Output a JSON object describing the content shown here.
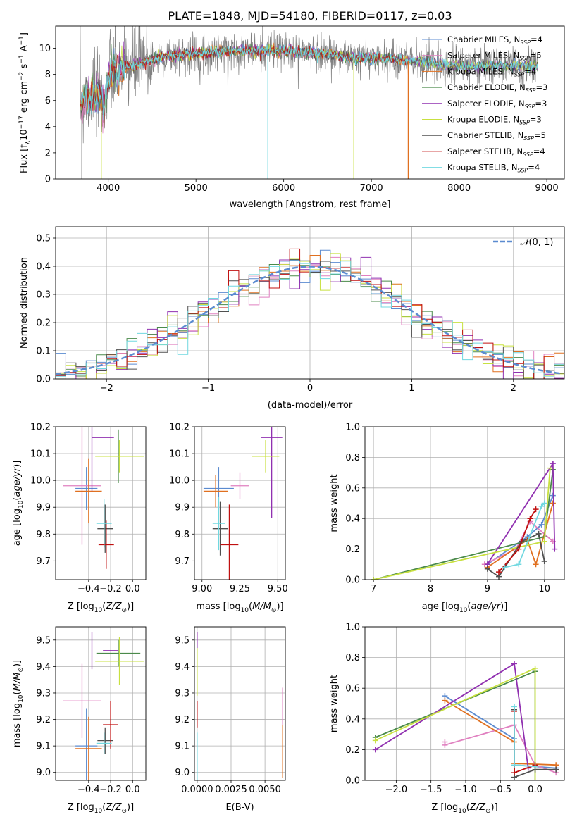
{
  "title": "PLATE=1848, MJD=54180, FIBERID=0117, z=0.03",
  "colors": {
    "Chabrier MILES": "#5b8bd0",
    "Salpeter MILES": "#e080c0",
    "Kroupa MILES": "#e07020",
    "Chabrier ELODIE": "#4a8a4a",
    "Salpeter ELODIE": "#9030b0",
    "Kroupa ELODIE": "#c8e040",
    "Chabrier STELIB": "#505050",
    "Salpeter STELIB": "#c01010",
    "Kroupa STELIB": "#70d8e0",
    "data": "#808080",
    "normal": "#5b8bd0"
  },
  "chart_data": [
    {
      "id": "spectrum",
      "type": "line",
      "xlabel": "wavelength [Angstrom, rest frame]",
      "ylabel": "Flux [f_λ10^-17 erg cm^-2 s^-1 A^-1]",
      "xlim": [
        3400,
        9200
      ],
      "ylim": [
        0,
        11.7
      ],
      "xticks": [
        4000,
        5000,
        6000,
        7000,
        8000,
        9000
      ],
      "yticks": [
        0,
        2,
        4,
        6,
        8,
        10
      ],
      "legend_position": "top-right",
      "legend": [
        {
          "key": "Chabrier MILES",
          "label": "Chabrier MILES, N",
          "sub": "SSP",
          "tail": "=4"
        },
        {
          "key": "Salpeter MILES",
          "label": "Salpeter MILES, N",
          "sub": "SSP",
          "tail": "=5"
        },
        {
          "key": "Kroupa MILES",
          "label": "Kroupa MILES, N",
          "sub": "SSP",
          "tail": "=4"
        },
        {
          "key": "Chabrier ELODIE",
          "label": "Chabrier ELODIE, N",
          "sub": "SSP",
          "tail": "=3"
        },
        {
          "key": "Salpeter ELODIE",
          "label": "Salpeter ELODIE, N",
          "sub": "SSP",
          "tail": "=3"
        },
        {
          "key": "Kroupa ELODIE",
          "label": "Kroupa ELODIE, N",
          "sub": "SSP",
          "tail": "=3"
        },
        {
          "key": "Chabrier STELIB",
          "label": "Chabrier STELIB, N",
          "sub": "SSP",
          "tail": "=5"
        },
        {
          "key": "Salpeter STELIB",
          "label": "Salpeter STELIB, N",
          "sub": "SSP",
          "tail": "=4"
        },
        {
          "key": "Kroupa STELIB",
          "label": "Kroupa STELIB, N",
          "sub": "SSP",
          "tail": "=4"
        }
      ],
      "continuum": [
        [
          3680,
          5.8
        ],
        [
          3750,
          6.2
        ],
        [
          3900,
          6.6
        ],
        [
          3950,
          5.2
        ],
        [
          4000,
          7.8
        ],
        [
          4100,
          8.4
        ],
        [
          4300,
          8.7
        ],
        [
          4500,
          9.2
        ],
        [
          4800,
          9.5
        ],
        [
          5000,
          9.6
        ],
        [
          5500,
          9.8
        ],
        [
          6000,
          9.8
        ],
        [
          6500,
          9.6
        ],
        [
          6800,
          9.2
        ],
        [
          7000,
          9.3
        ],
        [
          7500,
          9.0
        ],
        [
          8000,
          8.6
        ],
        [
          8500,
          8.7
        ],
        [
          8900,
          8.6
        ]
      ],
      "dropouts": [
        {
          "x": 3700,
          "key": "Chabrier STELIB"
        },
        {
          "x": 3920,
          "key": "Kroupa ELODIE"
        },
        {
          "x": 5820,
          "key": "Kroupa STELIB"
        },
        {
          "x": 6800,
          "key": "Kroupa ELODIE"
        },
        {
          "x": 7420,
          "key": "Kroupa MILES"
        }
      ]
    },
    {
      "id": "residuals",
      "type": "histogram",
      "xlabel": "(data-model)/error",
      "ylabel": "Normed distribution",
      "xlim": [
        -2.5,
        2.5
      ],
      "ylim": [
        0,
        0.54
      ],
      "xticks": [
        -2,
        -1,
        0,
        1,
        2
      ],
      "yticks": [
        0.0,
        0.1,
        0.2,
        0.3,
        0.4,
        0.5
      ],
      "legend_label": "N(0,1)",
      "legend_position": "top-right",
      "bins": 50,
      "normal": {
        "mu": 0,
        "sigma": 1
      }
    },
    {
      "id": "age-vs-Z",
      "type": "errorbar",
      "xlabel": "Z [log10(Z/Z☉)]",
      "ylabel": "age  [log10(age/yr)]",
      "xlim": [
        -0.7,
        0.12
      ],
      "ylim": [
        9.63,
        10.2
      ],
      "xticks": [
        -0.4,
        -0.2,
        0.0
      ],
      "xticklabels": [
        "−0.4",
        "−0.2",
        "0.0"
      ],
      "yticks": [
        9.7,
        9.8,
        9.9,
        10.0,
        10.1,
        10.2
      ],
      "points": [
        {
          "key": "Chabrier MILES",
          "x": -0.42,
          "xerr": 0.1,
          "y": 9.97,
          "yerr": 0.08
        },
        {
          "key": "Salpeter MILES",
          "x": -0.46,
          "xerr": 0.17,
          "y": 9.98,
          "yerr": 0.22
        },
        {
          "key": "Kroupa MILES",
          "x": -0.4,
          "xerr": 0.12,
          "y": 9.96,
          "yerr": 0.12
        },
        {
          "key": "Chabrier ELODIE",
          "x": -0.13,
          "xerr": 0.2,
          "y": 10.09,
          "yerr": 0.1
        },
        {
          "key": "Salpeter ELODIE",
          "x": -0.37,
          "xerr": 0.0,
          "y": 10.16,
          "yerr": 0.2
        },
        {
          "key": "Salpeter ELODIE",
          "x": -0.27,
          "xerr": 0.1,
          "y": 10.16,
          "yerr": 0.0
        },
        {
          "key": "Kroupa ELODIE",
          "x": -0.12,
          "xerr": 0.22,
          "y": 10.09,
          "yerr": 0.06
        },
        {
          "key": "Chabrier STELIB",
          "x": -0.25,
          "xerr": 0.07,
          "y": 9.82,
          "yerr": 0.09
        },
        {
          "key": "Salpeter STELIB",
          "x": -0.24,
          "xerr": 0.07,
          "y": 9.76,
          "yerr": 0.09
        },
        {
          "key": "Kroupa STELIB",
          "x": -0.26,
          "xerr": 0.07,
          "y": 9.84,
          "yerr": 0.09
        }
      ]
    },
    {
      "id": "age-vs-mass",
      "type": "errorbar",
      "xlabel": "mass [log10(M/M☉)]",
      "ylabel": "",
      "xlim": [
        8.95,
        9.55
      ],
      "ylim": [
        9.63,
        10.2
      ],
      "xticks": [
        9.0,
        9.25,
        9.5
      ],
      "xticklabels": [
        "9.00",
        "9.25",
        "9.50"
      ],
      "yticks": [
        9.7,
        9.8,
        9.9,
        10.0,
        10.1,
        10.2
      ],
      "points": [
        {
          "key": "Chabrier MILES",
          "x": 9.11,
          "xerr": 0.1,
          "y": 9.97,
          "yerr": 0.08
        },
        {
          "key": "Salpeter MILES",
          "x": 9.25,
          "xerr": 0.06,
          "y": 9.98,
          "yerr": 0.05
        },
        {
          "key": "Kroupa MILES",
          "x": 9.09,
          "xerr": 0.08,
          "y": 9.96,
          "yerr": 0.06
        },
        {
          "key": "Chabrier ELODIE",
          "x": 9.45,
          "xerr": 0.05,
          "y": 10.09,
          "yerr": 0.0
        },
        {
          "key": "Salpeter ELODIE",
          "x": 9.46,
          "xerr": 0.07,
          "y": 10.16,
          "yerr": 0.3
        },
        {
          "key": "Kroupa ELODIE",
          "x": 9.42,
          "xerr": 0.09,
          "y": 10.09,
          "yerr": 0.06
        },
        {
          "key": "Chabrier STELIB",
          "x": 9.12,
          "xerr": 0.05,
          "y": 9.82,
          "yerr": 0.1
        },
        {
          "key": "Salpeter STELIB",
          "x": 9.18,
          "xerr": 0.06,
          "y": 9.76,
          "yerr": 0.15
        },
        {
          "key": "Kroupa STELIB",
          "x": 9.11,
          "xerr": 0.04,
          "y": 9.84,
          "yerr": 0.1
        }
      ]
    },
    {
      "id": "weight-vs-age",
      "type": "line",
      "xlabel": "age  [log10(age/yr)]",
      "ylabel": "mass weight",
      "xlim": [
        6.85,
        10.35
      ],
      "ylim": [
        0,
        1
      ],
      "xticks": [
        7,
        8,
        9,
        10
      ],
      "yticks": [
        0.0,
        0.2,
        0.4,
        0.6,
        0.8,
        1.0
      ],
      "series": [
        {
          "key": "Chabrier MILES",
          "x": [
            9.0,
            9.7,
            9.95,
            10.15
          ],
          "y": [
            0.1,
            0.28,
            0.36,
            0.55
          ]
        },
        {
          "key": "Salpeter MILES",
          "x": [
            8.95,
            9.5,
            9.75,
            10.15
          ],
          "y": [
            0.1,
            0.2,
            0.38,
            0.25
          ]
        },
        {
          "key": "Kroupa MILES",
          "x": [
            9.0,
            9.7,
            9.85,
            10.15
          ],
          "y": [
            0.08,
            0.26,
            0.1,
            0.5
          ]
        },
        {
          "key": "Chabrier ELODIE",
          "x": [
            7.0,
            10.0,
            10.15
          ],
          "y": [
            0.0,
            0.28,
            0.72
          ]
        },
        {
          "key": "Salpeter ELODIE",
          "x": [
            9.0,
            10.15,
            10.18
          ],
          "y": [
            0.1,
            0.76,
            0.2
          ]
        },
        {
          "key": "Kroupa ELODIE",
          "x": [
            7.0,
            10.0,
            10.1
          ],
          "y": [
            0.0,
            0.25,
            0.73
          ]
        },
        {
          "key": "Chabrier STELIB",
          "x": [
            9.0,
            9.2,
            9.6,
            9.9,
            10.0
          ],
          "y": [
            0.07,
            0.02,
            0.25,
            0.3,
            0.12
          ]
        },
        {
          "key": "Salpeter STELIB",
          "x": [
            9.2,
            9.55,
            9.75,
            9.85
          ],
          "y": [
            0.05,
            0.2,
            0.4,
            0.46
          ]
        },
        {
          "key": "Kroupa STELIB",
          "x": [
            9.3,
            9.55,
            9.95,
            10.0
          ],
          "y": [
            0.08,
            0.1,
            0.48,
            0.5
          ]
        }
      ]
    },
    {
      "id": "mass-vs-Z",
      "type": "errorbar",
      "xlabel": "Z [log10(Z/Z☉)]",
      "ylabel": "mass [log10(M/M☉)]",
      "xlim": [
        -0.7,
        0.12
      ],
      "ylim": [
        8.97,
        9.55
      ],
      "xticks": [
        -0.4,
        -0.2,
        0.0
      ],
      "xticklabels": [
        "−0.4",
        "−0.2",
        "0.0"
      ],
      "yticks": [
        9.0,
        9.1,
        9.2,
        9.3,
        9.4,
        9.5
      ],
      "points": [
        {
          "key": "Chabrier MILES",
          "x": -0.42,
          "xerr": 0.1,
          "y": 9.1,
          "yerr": 0.14
        },
        {
          "key": "Salpeter MILES",
          "x": -0.46,
          "xerr": 0.17,
          "y": 9.27,
          "yerr": 0.14
        },
        {
          "key": "Kroupa MILES",
          "x": -0.4,
          "xerr": 0.12,
          "y": 9.09,
          "yerr": 0.12
        },
        {
          "key": "Chabrier ELODIE",
          "x": -0.13,
          "xerr": 0.2,
          "y": 9.45,
          "yerr": 0.05
        },
        {
          "key": "Salpeter ELODIE",
          "x": -0.37,
          "xerr": 0.0,
          "y": 9.46,
          "yerr": 0.07
        },
        {
          "key": "Salpeter ELODIE",
          "x": -0.2,
          "xerr": 0.07,
          "y": 9.46,
          "yerr": 0.0
        },
        {
          "key": "Kroupa ELODIE",
          "x": -0.12,
          "xerr": 0.22,
          "y": 9.42,
          "yerr": 0.09
        },
        {
          "key": "Chabrier STELIB",
          "x": -0.25,
          "xerr": 0.07,
          "y": 9.12,
          "yerr": 0.05
        },
        {
          "key": "Salpeter STELIB",
          "x": -0.2,
          "xerr": 0.07,
          "y": 9.18,
          "yerr": 0.09
        },
        {
          "key": "Kroupa STELIB",
          "x": -0.26,
          "xerr": 0.07,
          "y": 9.11,
          "yerr": 0.04
        }
      ]
    },
    {
      "id": "mass-vs-EBV",
      "type": "errorbar",
      "xlabel": "E(B-V)",
      "ylabel": "",
      "xlim": [
        -0.0002,
        0.0065
      ],
      "ylim": [
        8.97,
        9.55
      ],
      "xticks": [
        0.0,
        0.0025,
        0.005
      ],
      "xticklabels": [
        "0.0000",
        "0.0025",
        "0.0050"
      ],
      "yticks": [
        9.0,
        9.1,
        9.2,
        9.3,
        9.4,
        9.5
      ],
      "points": [
        {
          "key": "Salpeter ELODIE",
          "x": 0.0,
          "xerr": 0,
          "y": 9.46,
          "yerr": 0.07
        },
        {
          "key": "Kroupa ELODIE",
          "x": 0.0,
          "xerr": 0,
          "y": 9.38,
          "yerr": 0.09
        },
        {
          "key": "Salpeter STELIB",
          "x": 0.0,
          "xerr": 0,
          "y": 9.22,
          "yerr": 0.05
        },
        {
          "key": "Kroupa STELIB",
          "x": 0.0,
          "xerr": 0,
          "y": 9.05,
          "yerr": 0.1
        },
        {
          "key": "Salpeter MILES",
          "x": 0.0063,
          "xerr": 0,
          "y": 9.2,
          "yerr": 0.12
        },
        {
          "key": "Kroupa MILES",
          "x": 0.0063,
          "xerr": 0,
          "y": 9.08,
          "yerr": 0.1
        }
      ]
    },
    {
      "id": "weight-vs-Z",
      "type": "line",
      "xlabel": "Z [log10(Z/Z☉)]",
      "ylabel": "mass weight",
      "xlim": [
        -2.45,
        0.42
      ],
      "ylim": [
        0,
        1
      ],
      "xticks": [
        -2.0,
        -1.5,
        -1.0,
        -0.5,
        0.0
      ],
      "xticklabels": [
        "−2.0",
        "−1.5",
        "−1.0",
        "−0.5",
        "0.0"
      ],
      "yticks": [
        0.0,
        0.2,
        0.4,
        0.6,
        0.8,
        1.0
      ],
      "series": [
        {
          "key": "Chabrier MILES",
          "x": [
            -1.3,
            -0.3,
            -0.3,
            0.3
          ],
          "y": [
            0.55,
            0.27,
            0.1,
            0.08
          ]
        },
        {
          "key": "Salpeter MILES",
          "x": [
            -1.3,
            -1.3,
            -0.3,
            0.0,
            0.3
          ],
          "y": [
            0.25,
            0.23,
            0.36,
            0.1,
            0.05
          ]
        },
        {
          "key": "Kroupa MILES",
          "x": [
            -1.3,
            -0.3,
            -0.3,
            0.3
          ],
          "y": [
            0.52,
            0.25,
            0.11,
            0.1
          ]
        },
        {
          "key": "Chabrier ELODIE",
          "x": [
            -2.3,
            0.0,
            0.0
          ],
          "y": [
            0.28,
            0.71,
            0.0
          ]
        },
        {
          "key": "Salpeter ELODIE",
          "x": [
            -2.3,
            -0.3,
            -0.1,
            0.0
          ],
          "y": [
            0.2,
            0.76,
            0.08,
            0.1
          ]
        },
        {
          "key": "Kroupa ELODIE",
          "x": [
            -2.3,
            0.0,
            0.0
          ],
          "y": [
            0.26,
            0.73,
            0.0
          ]
        },
        {
          "key": "Chabrier STELIB",
          "x": [
            -0.3,
            -0.3,
            0.0,
            0.3
          ],
          "y": [
            0.46,
            0.02,
            0.07,
            0.07
          ]
        },
        {
          "key": "Salpeter STELIB",
          "x": [
            -0.3,
            -0.3,
            0.0
          ],
          "y": [
            0.45,
            0.05,
            0.1
          ]
        },
        {
          "key": "Kroupa STELIB",
          "x": [
            -0.3,
            -0.3,
            0.0
          ],
          "y": [
            0.48,
            0.1,
            0.09
          ]
        }
      ]
    }
  ]
}
